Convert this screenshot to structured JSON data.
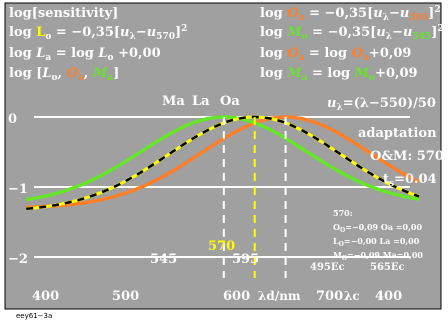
{
  "chart_data": {
    "type": "line",
    "xlabel_suffix": "/nm",
    "xlabel_lambda_d": "λd",
    "xlabel_lambda_c": "λc",
    "xlim": [
      380,
      720
    ],
    "ylim": [
      -2.2,
      0.35
    ],
    "x_ticks": [
      400,
      500,
      600,
      700
    ],
    "x_ticks_right": [
      "400"
    ],
    "y_ticks": [
      "0",
      "−1",
      "−2"
    ],
    "top_markers": [
      "Ma",
      "La",
      "Oa"
    ],
    "vertical_markers": [
      {
        "label": "545",
        "x": 545,
        "style": "white-dashed"
      },
      {
        "label": "570",
        "x": 570,
        "style": "yellow-dashed"
      },
      {
        "label": "595",
        "x": 595,
        "style": "white-dashed"
      }
    ],
    "ec_labels": [
      "495Ec",
      "565Ec"
    ],
    "series": [
      {
        "color": "#ff7f2a",
        "width": 3.5,
        "peak": 595,
        "floor": -1.3
      },
      {
        "color": "#66e62a",
        "width": 3.5,
        "peak": 545,
        "floor": -1.25
      },
      {
        "color": "#ffff00",
        "width": 3,
        "peak": 570,
        "floor": -1.35
      },
      {
        "color": "#000000",
        "width": 2.5,
        "peak": 570,
        "floor": -1.35,
        "dash": true
      }
    ]
  },
  "header_left": {
    "line1": "log[sensitivity]",
    "line2": "log Lo = −0,35[uλ−u570]2",
    "line3": "log La = log Lo +0,00",
    "line4": "log [Lo, Oa, Ma]"
  },
  "header_right": {
    "line1": "log Oo = −0,35[uλ−u595]2",
    "line2": "log Mo = −0,35[uλ−u545]2",
    "line3": "log Oa = log Oo+0,09",
    "line4": "log Ma = log Mo+0,09",
    "line5": "uλ=(λ−550)/50"
  },
  "info": {
    "adaptation": "adaptation",
    "model": "O&M: 570",
    "ts": "ts=0.04"
  },
  "table": {
    "title": "570:",
    "row1": "OO=−0,09 Oa =0,00",
    "row2": "LO=−0,00 La =0,00",
    "row3": "MO=−0,09 Ma=0,00"
  },
  "footer": "eey61−3a",
  "colors": {
    "background": "#a0a0a0",
    "orange": "#ff7f2a",
    "green": "#66e62a",
    "yellow": "#ffff00",
    "white": "#ffffff"
  }
}
